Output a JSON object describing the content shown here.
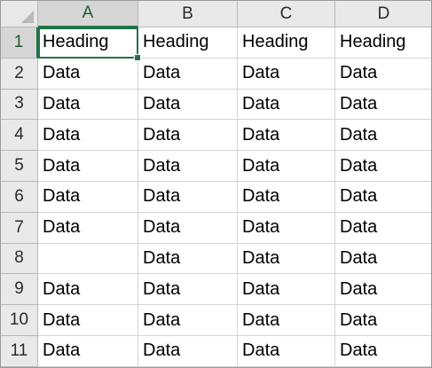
{
  "columns": [
    "A",
    "B",
    "C",
    "D"
  ],
  "rows": [
    {
      "num": "1",
      "cells": [
        "Heading",
        "Heading",
        "Heading",
        "Heading"
      ]
    },
    {
      "num": "2",
      "cells": [
        "Data",
        "Data",
        "Data",
        "Data"
      ]
    },
    {
      "num": "3",
      "cells": [
        "Data",
        "Data",
        "Data",
        "Data"
      ]
    },
    {
      "num": "4",
      "cells": [
        "Data",
        "Data",
        "Data",
        "Data"
      ]
    },
    {
      "num": "5",
      "cells": [
        "Data",
        "Data",
        "Data",
        "Data"
      ]
    },
    {
      "num": "6",
      "cells": [
        "Data",
        "Data",
        "Data",
        "Data"
      ]
    },
    {
      "num": "7",
      "cells": [
        "Data",
        "Data",
        "Data",
        "Data"
      ]
    },
    {
      "num": "8",
      "cells": [
        "",
        "Data",
        "Data",
        "Data"
      ]
    },
    {
      "num": "9",
      "cells": [
        "Data",
        "Data",
        "Data",
        "Data"
      ]
    },
    {
      "num": "10",
      "cells": [
        "Data",
        "Data",
        "Data",
        "Data"
      ]
    },
    {
      "num": "11",
      "cells": [
        "Data",
        "Data",
        "Data",
        "Data"
      ]
    }
  ],
  "selection": {
    "cell": "A1",
    "color": "#217346"
  },
  "colors": {
    "header_bg": "#e9e9e9",
    "active_header_bg": "#d6d6d6",
    "gridline": "#d4d4d4"
  }
}
